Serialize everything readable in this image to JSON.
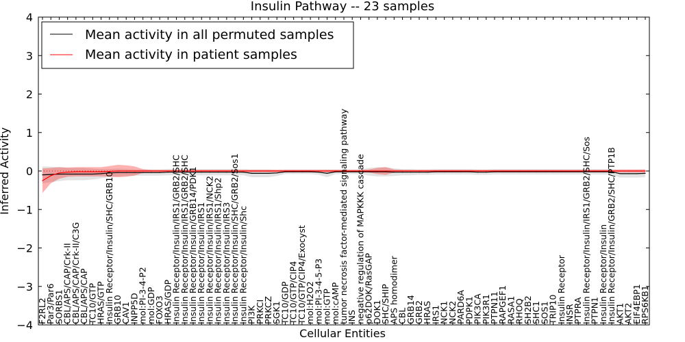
{
  "chart_data": {
    "type": "line",
    "title": "Insulin Pathway -- 23 samples",
    "xlabel": "Cellular Entities",
    "ylabel": "Inferred Activity",
    "ylim": [
      -4,
      4
    ],
    "yticks": [
      -4,
      -3,
      -2,
      -1,
      0,
      1,
      2,
      3,
      4
    ],
    "ytick_labels": [
      "−4",
      "−3",
      "−2",
      "−1",
      "0",
      "1",
      "2",
      "3",
      "4"
    ],
    "legend": {
      "placement": "top-left",
      "entries": [
        {
          "label": "Mean activity in all permuted samples",
          "color": "#000000"
        },
        {
          "label": "Mean activity in patient samples",
          "color": "#ff0000"
        }
      ]
    },
    "categories": [
      "F2RL2",
      "Par3/Par6",
      "SORBS1",
      "CBL/APS/CAP/Crk-II",
      "CBL/APS/CAP/Crk-II/C3G",
      "CBL/APS/CAP",
      "TC10/GTP",
      "HRAS/GTP",
      "Insulin Receptor/Insulin/SHC/GRB10",
      "GRB10",
      "CAV1",
      "INPP5D",
      "mol:PI-3-4-P2",
      "mol:GDP",
      "FOXO3",
      "HRAS/GDP",
      "Insulin Receptor/Insulin/IRS1/GRB2/SHC",
      "Insulin Receptor/Insulin/IRS1/GRB2/SHC",
      "Insulin Receptor/Insulin/GRB14/PDK1",
      "Insulin Receptor/Insulin/IRS1",
      "Insulin Receptor/Insulin/IRS1/NCK2",
      "Insulin Receptor/Insulin/IRS1/Shp2",
      "Insulin Receptor/Insulin/IRS3",
      "Insulin Receptor/Insulin/SHC/GRB2/Sos1",
      "Insulin Receptor/Insulin/Shc",
      "PI3K",
      "PRKCI",
      "PRKCZ",
      "SGK1",
      "TC10/GDP",
      "TC10/GTP/CIP4",
      "TC10/GTP/CIP4/Exocyst",
      "mol:H2O2",
      "mol:PI-3-4-5-P3",
      "mol:GTP",
      "mol:cAMP",
      "tumor necrosis factor-mediated signaling pathway",
      "INS",
      "negative regulation of MAPKKK cascade",
      "p62DOK/RasGAP",
      "DOK1",
      "SHC/SHIP",
      "APS homodimer",
      "CBL",
      "GRB14",
      "GRB2",
      "HRAS",
      "IRS1",
      "NCK1",
      "NCK2",
      "PARD6A",
      "PDPK1",
      "PIK3CA",
      "PIK3R1",
      "PTPN11",
      "RAPGEF1",
      "RASA1",
      "RHOQ",
      "SH2B2",
      "SHC1",
      "SOS1",
      "TRIP10",
      "Insulin Receptor",
      "INSR",
      "PTPRA",
      "Insulin Receptor/Insulin/IRS1/GRB2/SHC/Sos",
      "PTPN1",
      "Insulin Receptor/Insulin",
      "Insulin Receptor/Insulin/GRB2/SHC/PTP1B",
      "AKT1",
      "AKT2",
      "EIF4EBP1",
      "RPS6KB1"
    ],
    "series": [
      {
        "name": "Mean activity in all permuted samples",
        "color": "#000000",
        "values": [
          -0.1,
          -0.09,
          -0.08,
          -0.08,
          -0.08,
          -0.08,
          -0.08,
          -0.07,
          -0.05,
          -0.04,
          -0.04,
          -0.04,
          -0.04,
          -0.04,
          -0.04,
          -0.03,
          -0.03,
          -0.03,
          -0.03,
          -0.03,
          -0.03,
          -0.03,
          -0.03,
          -0.03,
          -0.03,
          -0.06,
          -0.06,
          -0.06,
          -0.05,
          -0.02,
          -0.02,
          -0.02,
          -0.02,
          -0.03,
          -0.06,
          -0.02,
          -0.02,
          -0.02,
          -0.02,
          -0.02,
          -0.02,
          -0.02,
          -0.03,
          -0.03,
          -0.03,
          -0.03,
          -0.03,
          -0.02,
          -0.02,
          -0.02,
          -0.02,
          -0.02,
          -0.03,
          -0.03,
          -0.02,
          -0.02,
          -0.02,
          -0.02,
          -0.02,
          -0.02,
          -0.02,
          -0.02,
          -0.02,
          -0.02,
          -0.02,
          -0.02,
          -0.02,
          -0.02,
          -0.02,
          -0.07,
          -0.07,
          -0.07,
          -0.06
        ],
        "band": [
          0.22,
          0.2,
          0.18,
          0.16,
          0.16,
          0.16,
          0.14,
          0.12,
          0.1,
          0.1,
          0.09,
          0.08,
          0.08,
          0.08,
          0.08,
          0.08,
          0.08,
          0.08,
          0.08,
          0.08,
          0.08,
          0.08,
          0.08,
          0.08,
          0.08,
          0.1,
          0.1,
          0.1,
          0.08,
          0.06,
          0.06,
          0.06,
          0.06,
          0.07,
          0.1,
          0.06,
          0.06,
          0.06,
          0.06,
          0.1,
          0.12,
          0.12,
          0.1,
          0.08,
          0.08,
          0.07,
          0.07,
          0.07,
          0.07,
          0.07,
          0.07,
          0.07,
          0.07,
          0.07,
          0.07,
          0.07,
          0.07,
          0.07,
          0.07,
          0.07,
          0.07,
          0.07,
          0.07,
          0.07,
          0.07,
          0.07,
          0.07,
          0.07,
          0.07,
          0.1,
          0.1,
          0.1,
          0.1
        ]
      },
      {
        "name": "Mean activity in patient samples",
        "color": "#ff0000",
        "values": [
          -0.25,
          -0.12,
          -0.05,
          -0.03,
          -0.02,
          -0.02,
          -0.02,
          -0.02,
          -0.01,
          0.0,
          0.0,
          0.0,
          0.0,
          0.0,
          0.0,
          0.0,
          0.0,
          0.0,
          0.0,
          0.0,
          0.0,
          0.0,
          0.0,
          0.0,
          0.0,
          0.0,
          0.0,
          0.0,
          0.0,
          0.0,
          0.0,
          0.0,
          0.0,
          0.0,
          0.0,
          0.0,
          0.0,
          0.0,
          0.0,
          0.0,
          0.0,
          0.0,
          0.0,
          0.0,
          0.0,
          0.0,
          0.0,
          0.0,
          0.0,
          0.0,
          0.0,
          0.0,
          0.0,
          0.0,
          0.0,
          0.0,
          0.0,
          0.0,
          0.0,
          0.0,
          0.0,
          0.0,
          0.0,
          0.0,
          0.0,
          0.0,
          0.0,
          0.0,
          0.0,
          0.0,
          0.0,
          0.0,
          0.0
        ],
        "band": [
          0.32,
          0.2,
          0.15,
          0.12,
          0.12,
          0.12,
          0.12,
          0.12,
          0.14,
          0.16,
          0.15,
          0.12,
          0.05,
          0.03,
          0.03,
          0.03,
          0.03,
          0.03,
          0.03,
          0.03,
          0.03,
          0.03,
          0.03,
          0.03,
          0.03,
          0.03,
          0.03,
          0.03,
          0.03,
          0.03,
          0.03,
          0.03,
          0.03,
          0.03,
          0.03,
          0.03,
          0.03,
          0.03,
          0.03,
          0.04,
          0.08,
          0.1,
          0.04,
          0.03,
          0.03,
          0.03,
          0.03,
          0.03,
          0.03,
          0.03,
          0.03,
          0.03,
          0.03,
          0.03,
          0.03,
          0.03,
          0.03,
          0.03,
          0.03,
          0.03,
          0.03,
          0.03,
          0.03,
          0.03,
          0.03,
          0.03,
          0.03,
          0.03,
          0.03,
          0.04,
          0.04,
          0.04,
          0.04
        ]
      }
    ]
  }
}
